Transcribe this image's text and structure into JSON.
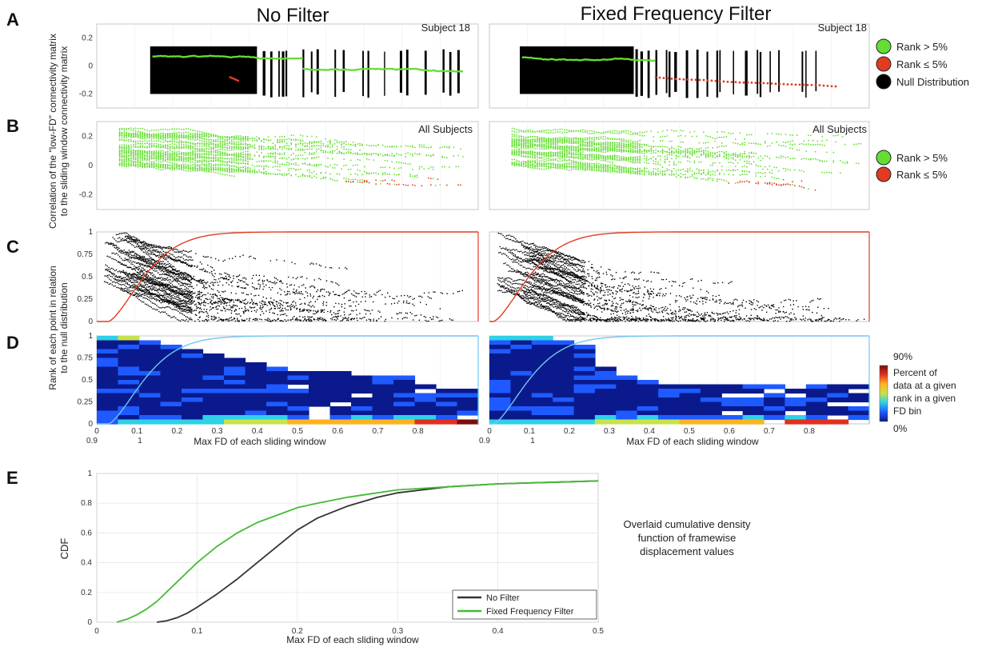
{
  "figure": {
    "panel_letters": [
      "A",
      "B",
      "C",
      "D",
      "E"
    ],
    "column_titles": [
      "No Filter",
      "Fixed Frequency Filter"
    ],
    "shared_ylabel_AB_line1": "Correlation of the \"low-FD\" connectivity matrix",
    "shared_ylabel_AB_line2": "to the sliding window connectivity matrix",
    "shared_ylabel_CD_line1": "Rank of each point in relation",
    "shared_ylabel_CD_line2": "to the null distribution",
    "legend_A": [
      "Rank > 5%",
      "Rank  ≤ 5%",
      "Null Distribution"
    ],
    "legend_B": [
      "Rank > 5%",
      "Rank  ≤ 5%"
    ],
    "colorbar": {
      "max_label": "90%",
      "min_label": "0%",
      "description": [
        "Percent of",
        "data at a given",
        "rank in a given",
        "FD bin"
      ]
    },
    "caption_E": [
      "Overlaid cumulative density",
      "function of framewise",
      "displacement values"
    ]
  },
  "chart_data": [
    {
      "panel": "A",
      "column": "No Filter",
      "type": "scatter",
      "annotation": "Subject 18",
      "ylim": [
        -0.3,
        0.3
      ],
      "yticks": [
        "0.2",
        "0",
        "-0.2"
      ],
      "series": [
        {
          "name": "Rank > 5%",
          "color": "#66dd33"
        },
        {
          "name": "Rank  ≤ 5%",
          "color": "#e33a22"
        },
        {
          "name": "Null Distribution",
          "color": "#000000"
        }
      ]
    },
    {
      "panel": "A",
      "column": "Fixed Frequency Filter",
      "type": "scatter",
      "annotation": "Subject 18",
      "ylim": [
        -0.3,
        0.3
      ],
      "series": [
        {
          "name": "Rank > 5%",
          "color": "#66dd33"
        },
        {
          "name": "Rank  ≤ 5%",
          "color": "#e33a22"
        },
        {
          "name": "Null Distribution",
          "color": "#000000"
        }
      ]
    },
    {
      "panel": "B",
      "column": "No Filter",
      "type": "scatter",
      "annotation": "All Subjects",
      "ylim": [
        -0.3,
        0.3
      ],
      "yticks": [
        "0.2",
        "0",
        "-0.2"
      ],
      "series": [
        {
          "name": "Rank > 5%",
          "color": "#66dd33"
        },
        {
          "name": "Rank  ≤ 5%",
          "color": "#e33a22"
        }
      ]
    },
    {
      "panel": "B",
      "column": "Fixed Frequency Filter",
      "type": "scatter",
      "annotation": "All Subjects",
      "ylim": [
        -0.3,
        0.3
      ],
      "series": [
        {
          "name": "Rank > 5%",
          "color": "#66dd33"
        },
        {
          "name": "Rank  ≤ 5%",
          "color": "#e33a22"
        }
      ]
    },
    {
      "panel": "C",
      "column": "No Filter",
      "type": "scatter",
      "ylim": [
        0,
        1
      ],
      "yticks": [
        "1",
        "0.75",
        "0.5",
        "0.25",
        "0"
      ],
      "series": [
        {
          "name": "",
          "color": "#000000"
        },
        {
          "name": "",
          "color": "#e33a22"
        }
      ]
    },
    {
      "panel": "C",
      "column": "Fixed Frequency Filter",
      "type": "scatter",
      "ylim": [
        0,
        1
      ],
      "series": [
        {
          "name": "",
          "color": "#000000"
        },
        {
          "name": "",
          "color": "#e33a22"
        }
      ]
    },
    {
      "panel": "D",
      "column": "No Filter",
      "type": "heatmap",
      "ylim": [
        0,
        1
      ],
      "yticks": [
        "1",
        "0.75",
        "0.5",
        "0.25",
        "0"
      ],
      "xticks_row1": [
        "0",
        "0.1",
        "0.2",
        "0.3",
        "0.4",
        "0.5",
        "0.6",
        "0.7",
        "0.8"
      ],
      "xticks_row2": [
        "0.9",
        "1"
      ],
      "xlabel": "Max FD of each sliding window",
      "colorscale": [
        "#0a1a8c",
        "#1e5aff",
        "#2fd1e6",
        "#c8e34a",
        "#ffb21f",
        "#e0301e",
        "#7a0c0c"
      ],
      "cdf_overlay_color": "#6fc7f2"
    },
    {
      "panel": "D",
      "column": "Fixed Frequency Filter",
      "type": "heatmap",
      "ylim": [
        0,
        1
      ],
      "xticks_row1": [
        "0",
        "0.1",
        "0.2",
        "0.3",
        "0.4",
        "0.5",
        "0.6",
        "0.7",
        "0.8"
      ],
      "xticks_row2": [
        "0.9",
        "1"
      ],
      "xlabel": "Max FD of each sliding window",
      "colorscale": [
        "#0a1a8c",
        "#1e5aff",
        "#2fd1e6",
        "#c8e34a",
        "#ffb21f",
        "#e0301e",
        "#7a0c0c"
      ],
      "cdf_overlay_color": "#6fc7f2"
    },
    {
      "panel": "E",
      "type": "line",
      "xlabel": "Max FD of each sliding window",
      "ylabel": "CDF",
      "xlim": [
        0,
        0.5
      ],
      "ylim": [
        0,
        1
      ],
      "xticks": [
        "0",
        "0.1",
        "0.2",
        "0.3",
        "0.4",
        "0.5"
      ],
      "yticks": [
        "0",
        "0.2",
        "0.4",
        "0.6",
        "0.8",
        "1"
      ],
      "grid": true,
      "legend_position": "bottom-right",
      "series": [
        {
          "name": "No Filter",
          "color": "#333333",
          "x": [
            0.06,
            0.07,
            0.08,
            0.09,
            0.1,
            0.12,
            0.14,
            0.16,
            0.18,
            0.2,
            0.22,
            0.25,
            0.28,
            0.3,
            0.35,
            0.4,
            0.45,
            0.5
          ],
          "y": [
            0.0,
            0.01,
            0.03,
            0.06,
            0.1,
            0.19,
            0.29,
            0.4,
            0.51,
            0.62,
            0.7,
            0.78,
            0.84,
            0.87,
            0.91,
            0.93,
            0.94,
            0.95
          ]
        },
        {
          "name": "Fixed Frequency Filter",
          "color": "#44bb33",
          "x": [
            0.02,
            0.03,
            0.04,
            0.05,
            0.06,
            0.08,
            0.1,
            0.12,
            0.14,
            0.16,
            0.18,
            0.2,
            0.22,
            0.25,
            0.28,
            0.3,
            0.35,
            0.4,
            0.45,
            0.5
          ],
          "y": [
            0.0,
            0.02,
            0.05,
            0.09,
            0.14,
            0.27,
            0.4,
            0.51,
            0.6,
            0.67,
            0.72,
            0.77,
            0.8,
            0.84,
            0.87,
            0.89,
            0.91,
            0.93,
            0.94,
            0.95
          ]
        }
      ]
    }
  ]
}
